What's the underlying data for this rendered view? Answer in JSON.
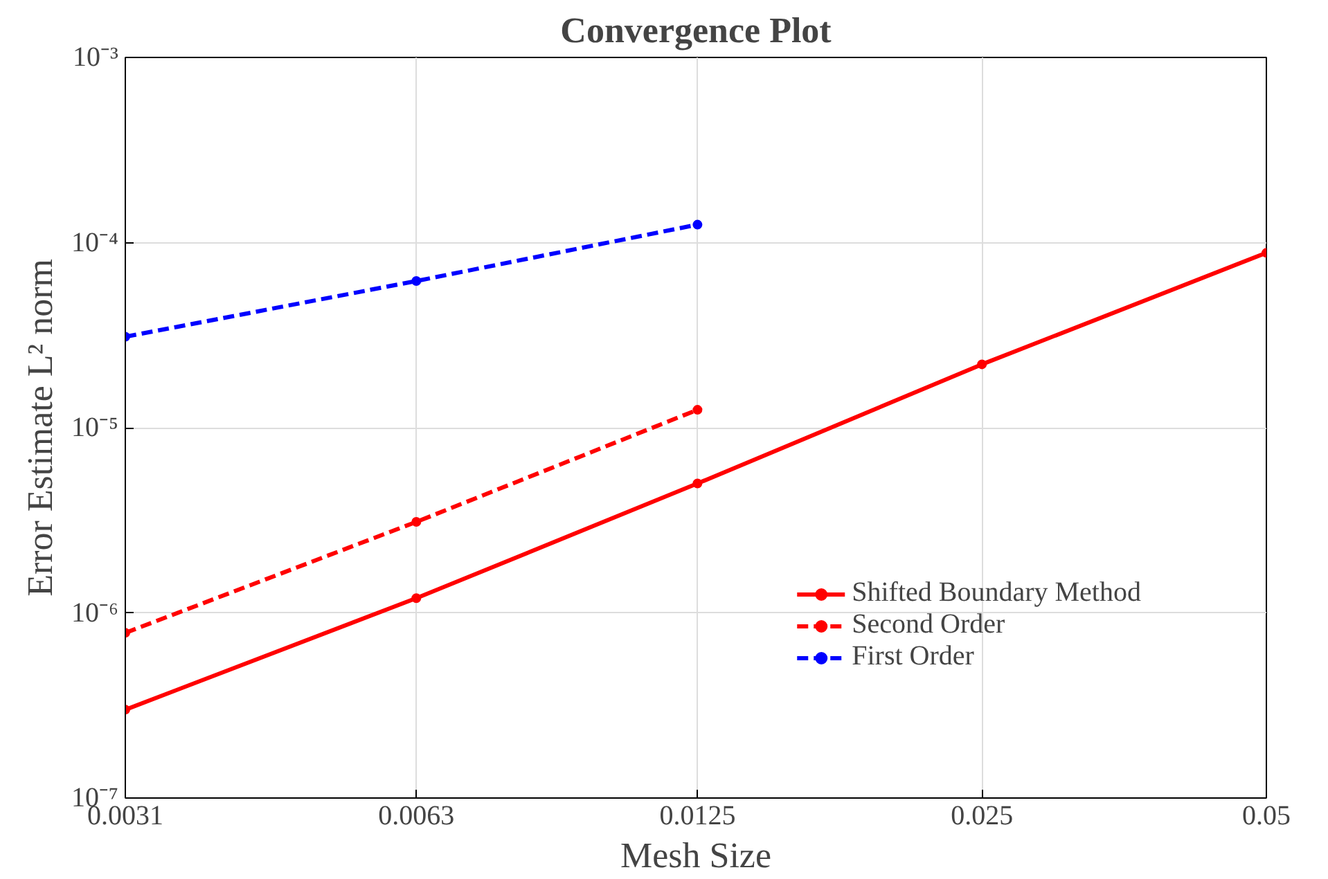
{
  "chart_data": {
    "type": "line",
    "title": "Convergence Plot",
    "xlabel": "Mesh Size",
    "ylabel": "Error Estimate L² norm",
    "log": "xy",
    "grid": true,
    "legend": "bottom right",
    "xlim": [
      0.0031,
      0.05
    ],
    "xticks": [
      0.0031,
      0.0063,
      0.0125,
      0.025,
      0.05
    ],
    "ylim": [
      1e-07,
      0.001
    ],
    "yticks": [
      {
        "value": 1e-07,
        "label": "10⁻⁷"
      },
      {
        "value": 1e-06,
        "label": "10⁻⁶"
      },
      {
        "value": 1e-05,
        "label": "10⁻⁵"
      },
      {
        "value": 0.0001,
        "label": "10⁻⁴"
      },
      {
        "value": 0.001,
        "label": "10⁻³"
      }
    ],
    "series": [
      {
        "name": "Shifted Boundary Method",
        "color": "#ff0000",
        "line_style": "solid",
        "marker": "circle",
        "x": [
          0.0031,
          0.0063,
          0.0125,
          0.025,
          0.05
        ],
        "values": [
          3e-07,
          1.2e-06,
          5e-06,
          2.2e-05,
          8.8e-05
        ]
      },
      {
        "name": "Second Order",
        "color": "#ff0000",
        "line_style": "dashed",
        "marker": "circle",
        "x": [
          0.0031,
          0.0063,
          0.0125
        ],
        "values": [
          7.8e-07,
          3.1e-06,
          1.25e-05
        ]
      },
      {
        "name": "First Order",
        "color": "#0000ff",
        "line_style": "dashed",
        "marker": "circle",
        "x": [
          0.0031,
          0.0063,
          0.0125
        ],
        "values": [
          3.1e-05,
          6.2e-05,
          0.000125
        ]
      }
    ]
  }
}
